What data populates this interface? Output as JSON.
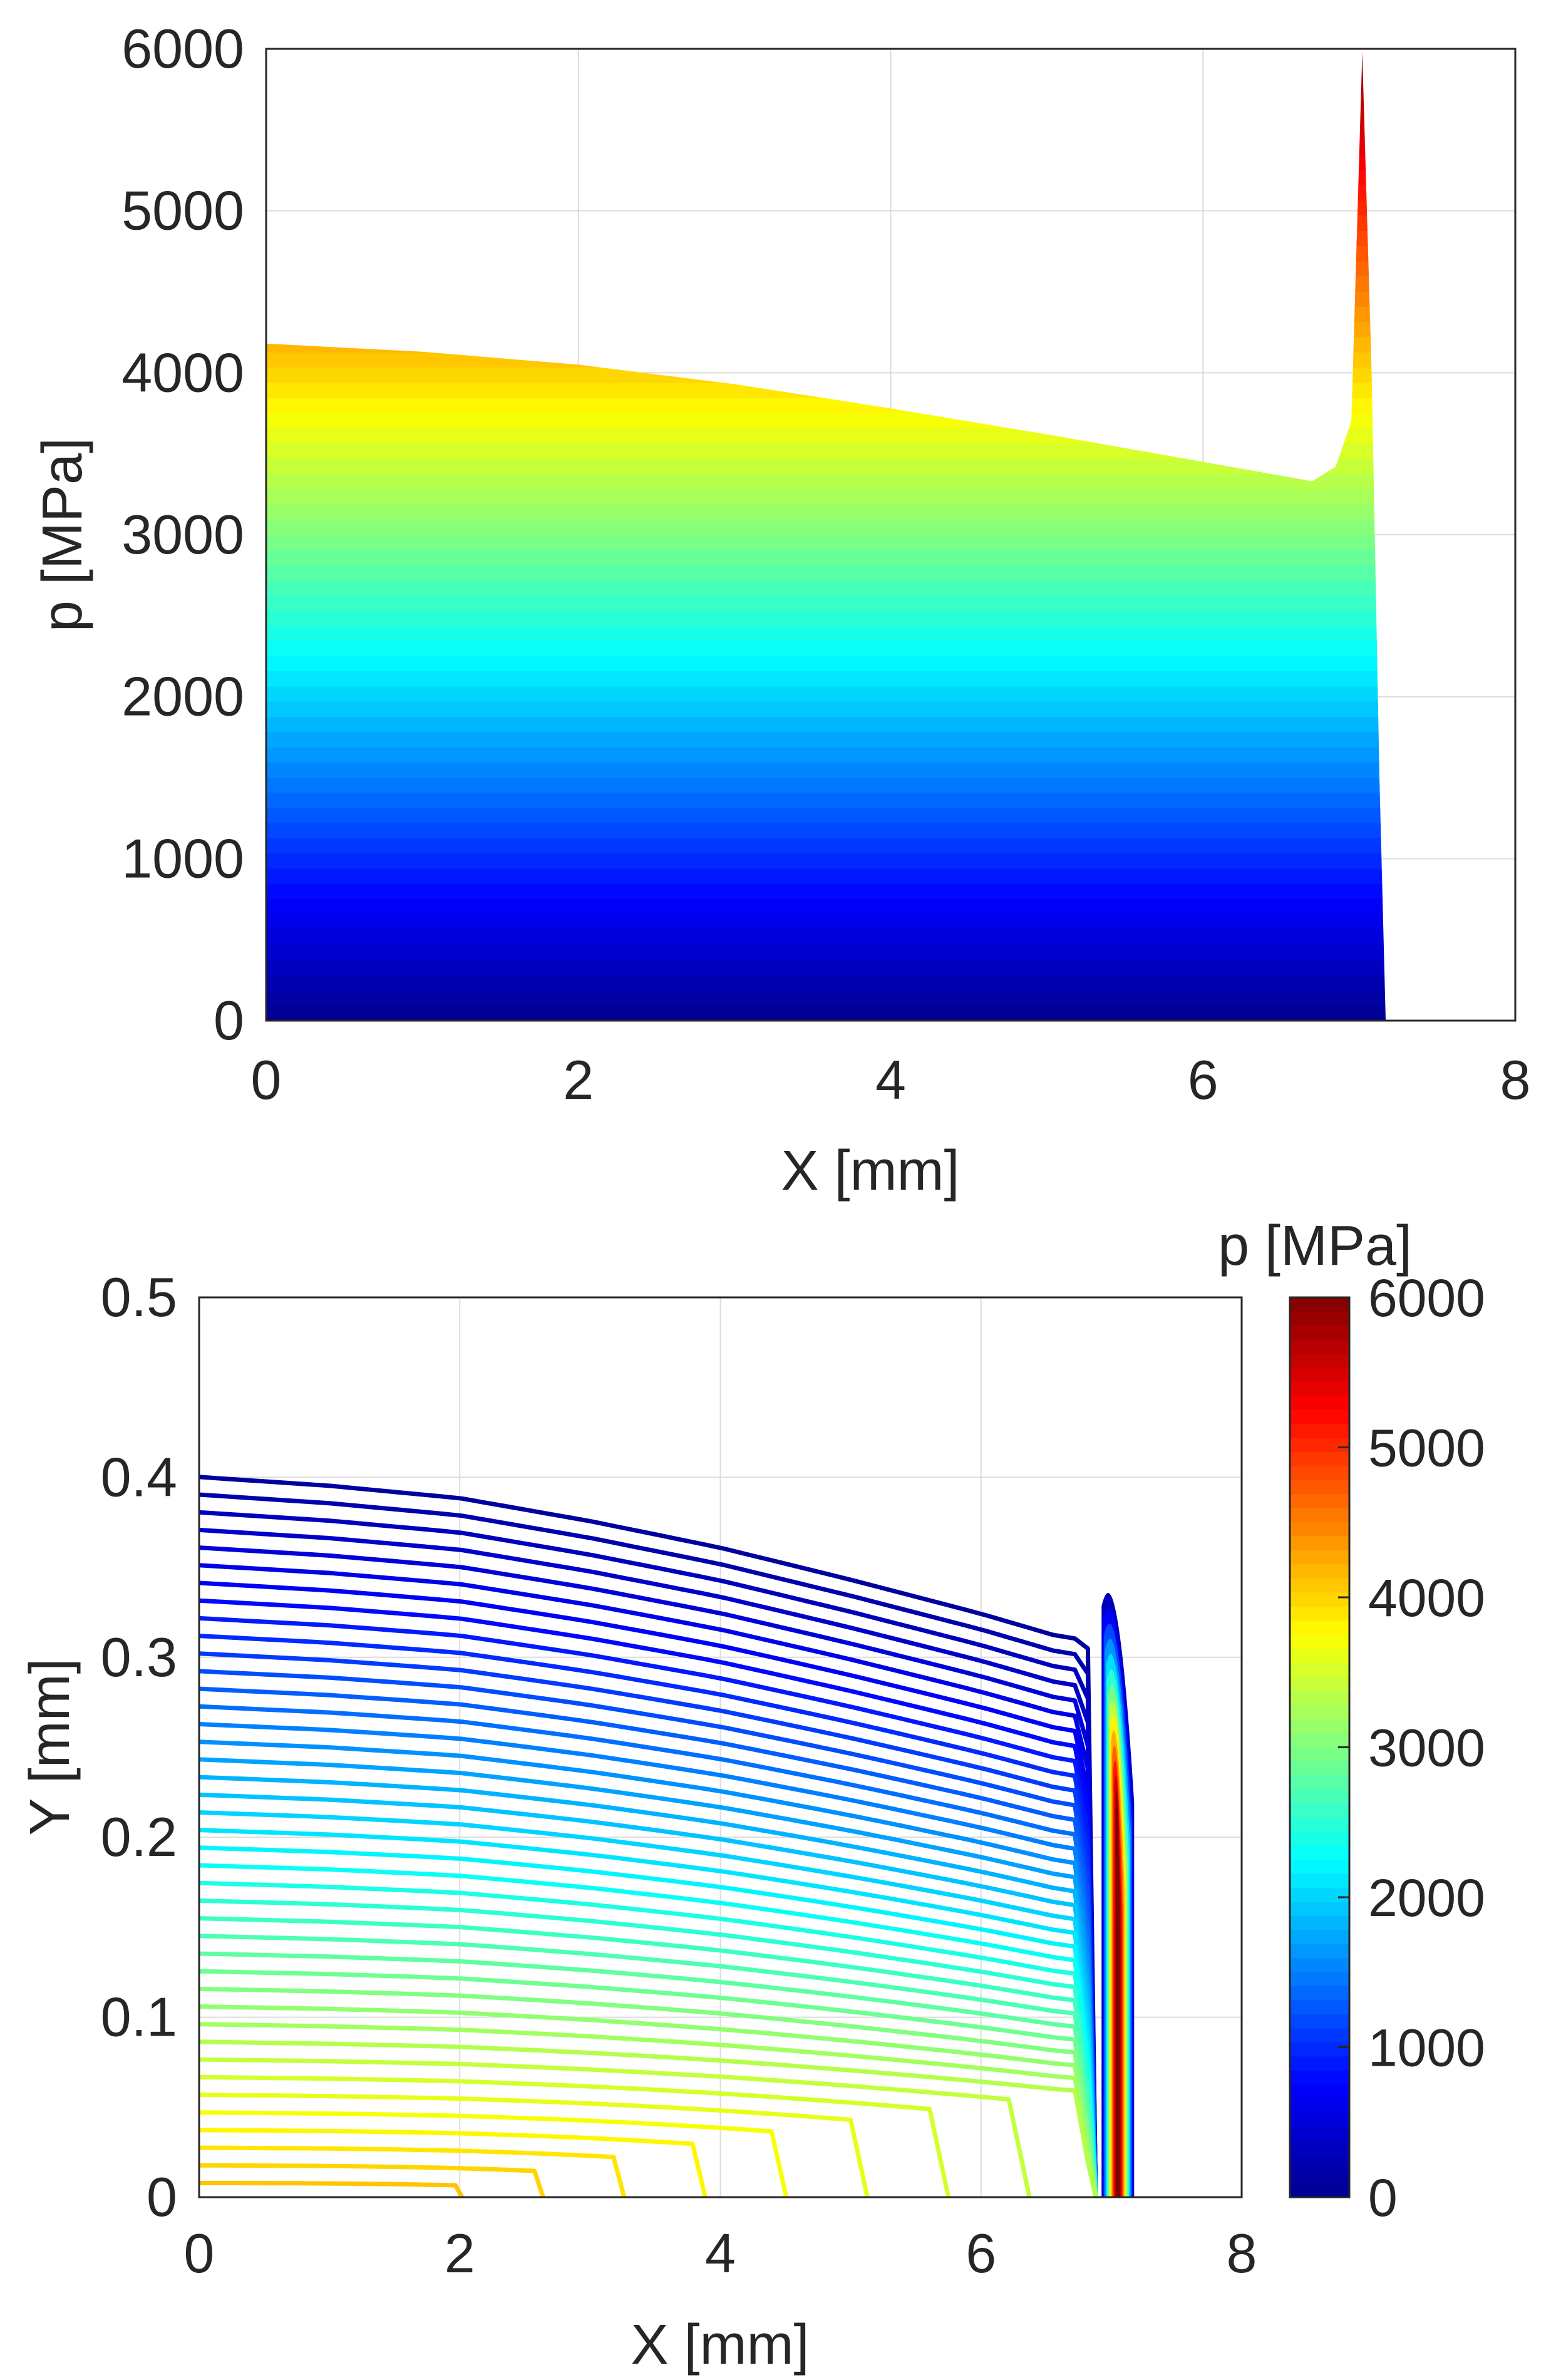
{
  "figure": {
    "panels": 2,
    "colormap": "jet",
    "colormap_stops": [
      "#00008f",
      "#0000ff",
      "#00ffff",
      "#ffff00",
      "#ff0000",
      "#800000"
    ]
  },
  "chart_data": [
    {
      "type": "area",
      "title": "",
      "xlabel": "X [mm]",
      "ylabel": "p [MPa]",
      "xlim": [
        0,
        8
      ],
      "ylim": [
        0,
        6000
      ],
      "xticks": [
        "0",
        "2",
        "4",
        "6",
        "8"
      ],
      "yticks": [
        "0",
        "1000",
        "2000",
        "3000",
        "4000",
        "5000",
        "6000"
      ],
      "grid": true,
      "fill": "vertical color gradient by pressure (jet colormap)",
      "series": [
        {
          "x": [
            0,
            1,
            2,
            3,
            4,
            5,
            6,
            6.7,
            6.85,
            6.95,
            7.02,
            7.08,
            7.13,
            7.17
          ],
          "y": [
            4180,
            4130,
            4050,
            3930,
            3780,
            3620,
            3450,
            3330,
            3420,
            3700,
            5980,
            4000,
            1500,
            0
          ]
        }
      ]
    },
    {
      "type": "contour",
      "title": "",
      "xlabel": "X [mm]",
      "ylabel": "Y [mm]",
      "xlim": [
        0,
        8
      ],
      "ylim": [
        0,
        0.5
      ],
      "xticks": [
        "0",
        "2",
        "4",
        "6",
        "8"
      ],
      "yticks": [
        "0",
        "0.1",
        "0.2",
        "0.3",
        "0.4",
        "0.5"
      ],
      "grid": true,
      "colorbar": {
        "label": "p [MPa]",
        "ticks": [
          "0",
          "1000",
          "2000",
          "3000",
          "4000",
          "5000",
          "6000"
        ],
        "limits": [
          0,
          6000
        ]
      },
      "contour_levels_MPa": [
        100,
        200,
        300,
        400,
        500,
        600,
        700,
        800,
        900,
        1000,
        1100,
        1200,
        1300,
        1400,
        1500,
        1600,
        1700,
        1800,
        1900,
        2000,
        2100,
        2200,
        2300,
        2400,
        2500,
        2600,
        2700,
        2800,
        2900,
        3000,
        3100,
        3200,
        3300,
        3400,
        3500,
        3600,
        3700,
        3800,
        3900,
        4000,
        4100
      ],
      "film_boundary": {
        "x": [
          0,
          1,
          2,
          3,
          4,
          5,
          6,
          6.7,
          6.9,
          7.02,
          7.08,
          7.13
        ],
        "y": [
          0.41,
          0.405,
          0.398,
          0.385,
          0.37,
          0.352,
          0.333,
          0.318,
          0.33,
          0.365,
          0.3,
          0
        ]
      },
      "pressure_spike": {
        "x_center": 7.05,
        "x_range": [
          6.9,
          7.15
        ],
        "peak_MPa": 6000
      }
    }
  ]
}
